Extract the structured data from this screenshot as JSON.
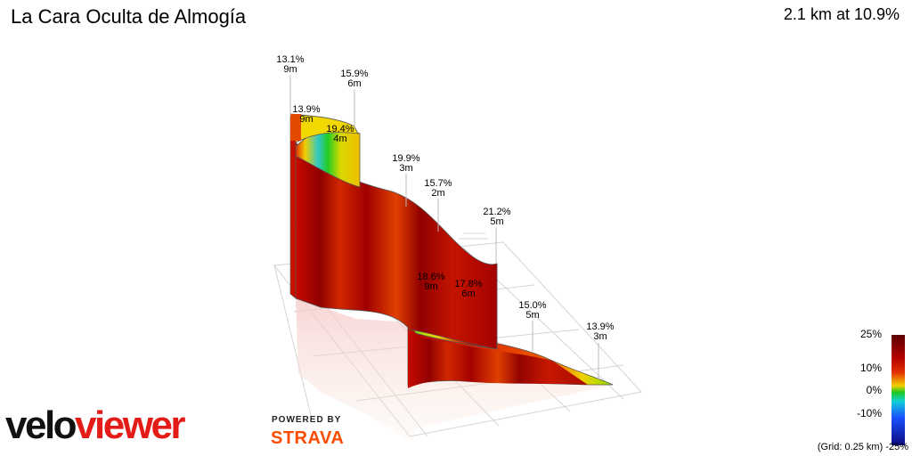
{
  "title": "La Cara Oculta de Almogía",
  "summary": "2.1 km at 10.9%",
  "segments": [
    {
      "grade": "13.1%",
      "len": "9m"
    },
    {
      "grade": "15.9%",
      "len": "6m"
    },
    {
      "grade": "13.9%",
      "len": "9m"
    },
    {
      "grade": "19.4%",
      "len": "4m"
    },
    {
      "grade": "19.9%",
      "len": "3m"
    },
    {
      "grade": "15.7%",
      "len": "2m"
    },
    {
      "grade": "21.2%",
      "len": "5m"
    },
    {
      "grade": "18.6%",
      "len": "9m"
    },
    {
      "grade": "17.8%",
      "len": "6m"
    },
    {
      "grade": "15.0%",
      "len": "5m"
    },
    {
      "grade": "13.9%",
      "len": "3m"
    }
  ],
  "legend": {
    "labels": [
      "25%",
      "10%",
      "0%",
      "-10%",
      "-25%"
    ],
    "grid_note": "(Grid: 0.25 km)",
    "colors": {
      "high": "#8b0000",
      "mid": "#e0e000",
      "zero": "#22cc22",
      "low": "#1a4cff",
      "min": "#0b0b80"
    }
  },
  "branding": {
    "logo_part1": "velo",
    "logo_part2": "viewer",
    "powered_by": "POWERED BY",
    "strava": "STRAVA"
  }
}
